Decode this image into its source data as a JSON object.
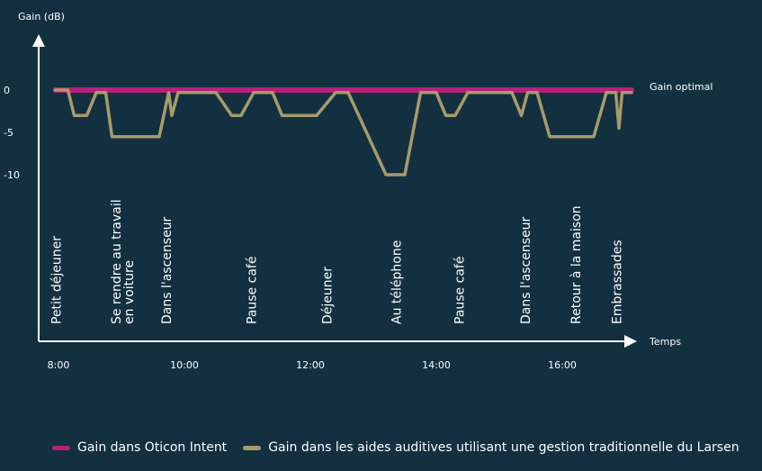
{
  "chart_data": {
    "type": "line",
    "ylabel": "Gain (dB)",
    "xlabel": "Temps",
    "y_ticks": [
      {
        "value": 0,
        "label": "0"
      },
      {
        "value": -5,
        "label": "-5"
      },
      {
        "value": -10,
        "label": "-10"
      }
    ],
    "x_ticks": [
      {
        "value": 8,
        "label": "8:00"
      },
      {
        "value": 10,
        "label": "10:00"
      },
      {
        "value": 12,
        "label": "12:00"
      },
      {
        "value": 14,
        "label": "14:00"
      },
      {
        "value": 16,
        "label": "16:00"
      }
    ],
    "reference_label": "Gain optimal",
    "series": [
      {
        "name": "Gain dans Oticon Intent",
        "color": "#b5217a",
        "x": [
          7.95,
          17.1
        ],
        "y": [
          0,
          0
        ]
      },
      {
        "name": "Gain dans les aides auditives utilisant une gestion traditionnelle du Larsen",
        "color": "#a89a6a",
        "x": [
          7.95,
          8.15,
          8.25,
          8.45,
          8.6,
          8.75,
          8.85,
          9.1,
          9.3,
          9.6,
          9.75,
          9.8,
          9.9,
          10.5,
          10.75,
          10.9,
          11.1,
          11.4,
          11.55,
          11.7,
          12.1,
          12.4,
          12.6,
          13.2,
          13.35,
          13.5,
          13.75,
          14.0,
          14.15,
          14.3,
          14.5,
          14.7,
          15.2,
          15.35,
          15.45,
          15.6,
          15.8,
          15.9,
          16.2,
          16.5,
          16.7,
          16.85,
          16.9,
          16.95,
          17.1
        ],
        "y": [
          0,
          0,
          -3,
          -3,
          -0.3,
          -0.3,
          -5.5,
          -5.5,
          -5.5,
          -5.5,
          -0.3,
          -3,
          -0.3,
          -0.3,
          -3,
          -3,
          -0.3,
          -0.3,
          -3,
          -3,
          -3,
          -0.3,
          -0.3,
          -10,
          -10,
          -10,
          -0.3,
          -0.3,
          -3,
          -3,
          -0.3,
          -0.3,
          -0.3,
          -3,
          -0.3,
          -0.3,
          -5.5,
          -5.5,
          -5.5,
          -5.5,
          -0.3,
          -0.3,
          -4.5,
          -0.3,
          -0.3
        ]
      }
    ],
    "annotations": [
      {
        "x": 7.95,
        "text": "Petit déjeuner"
      },
      {
        "x": 8.9,
        "text": "Se rendre au travail en voiture"
      },
      {
        "x": 9.7,
        "text": "Dans l'ascenseur"
      },
      {
        "x": 11.05,
        "text": "Pause café"
      },
      {
        "x": 12.25,
        "text": "Déjeuner"
      },
      {
        "x": 13.35,
        "text": "Au téléphone"
      },
      {
        "x": 14.35,
        "text": "Pause café"
      },
      {
        "x": 15.4,
        "text": "Dans l'ascenseur"
      },
      {
        "x": 16.2,
        "text": "Retour à la maison"
      },
      {
        "x": 16.85,
        "text": "Embrassades"
      }
    ]
  },
  "legend": [
    {
      "label": "Gain dans Oticon Intent",
      "color": "#b5217a"
    },
    {
      "label": "Gain dans les aides auditives utilisant une gestion traditionnelle du Larsen",
      "color": "#a89a6a"
    }
  ]
}
